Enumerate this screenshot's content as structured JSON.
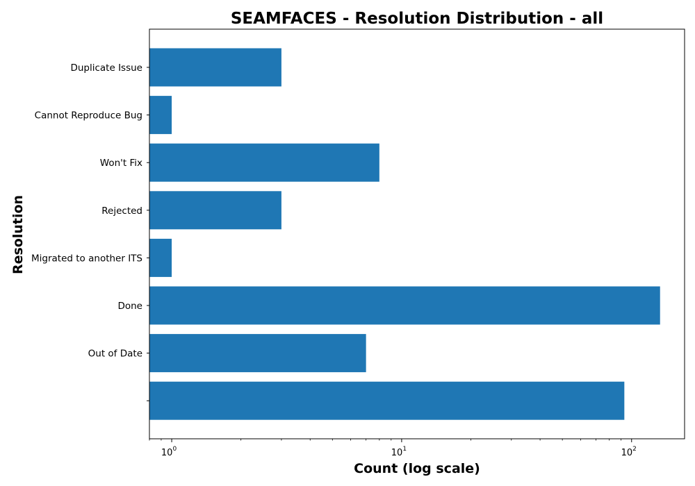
{
  "chart_data": {
    "type": "bar",
    "orientation": "horizontal",
    "title": "SEAMFACES - Resolution Distribution - all",
    "xlabel": "Count (log scale)",
    "ylabel": "Resolution",
    "x_scale": "log",
    "xlim": [
      0.8,
      170
    ],
    "x_ticks": [
      {
        "base": "10",
        "exp": "0",
        "value": 1
      },
      {
        "base": "10",
        "exp": "1",
        "value": 10
      },
      {
        "base": "10",
        "exp": "2",
        "value": 100
      }
    ],
    "categories": [
      "Duplicate Issue",
      "Cannot Reproduce Bug",
      "Won't Fix",
      "Rejected",
      "Migrated to another ITS",
      "Done",
      "Out of Date",
      ""
    ],
    "values": [
      3,
      1,
      8,
      3,
      1,
      133,
      7,
      93
    ],
    "bar_color": "#1f77b4",
    "grid": false
  }
}
